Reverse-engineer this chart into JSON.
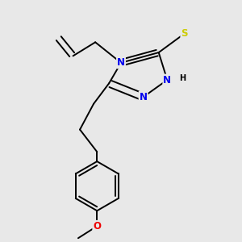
{
  "bg_color": "#e8e8e8",
  "atom_colors": {
    "N": "#0000ee",
    "S": "#cccc00",
    "O": "#ee0000",
    "C": "#000000",
    "H": "#000000"
  },
  "font_size_atom": 8.5,
  "font_size_h": 7,
  "line_color": "#000000",
  "line_width": 1.4,
  "figsize": [
    3.0,
    3.0
  ],
  "dpi": 100
}
